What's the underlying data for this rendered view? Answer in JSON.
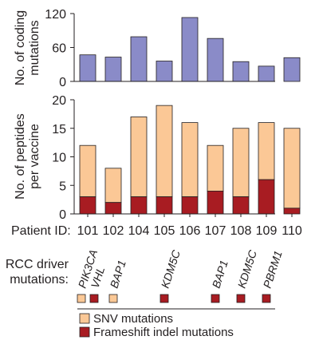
{
  "chart_data": [
    {
      "type": "bar",
      "ylabel": "No. of coding mutations",
      "ylabel_lines": [
        "No. of coding",
        "mutations"
      ],
      "ylim": [
        0,
        120
      ],
      "yticks": [
        0,
        60,
        120
      ],
      "categories": [
        "101",
        "102",
        "104",
        "105",
        "106",
        "107",
        "108",
        "109",
        "110"
      ],
      "series": [
        {
          "values": [
            47,
            43,
            79,
            36,
            113,
            76,
            35,
            27,
            42
          ]
        }
      ],
      "grid": false
    },
    {
      "type": "bar",
      "stacked": true,
      "ylabel": "No. of peptides per vaccine",
      "ylabel_lines": [
        "No. of peptides",
        "per vaccine"
      ],
      "ylim": [
        0,
        20
      ],
      "yticks": [
        0,
        5,
        10,
        15,
        20
      ],
      "categories": [
        "101",
        "102",
        "104",
        "105",
        "106",
        "107",
        "108",
        "109",
        "110"
      ],
      "series": [
        {
          "name": "Frameshift indel mutations",
          "values": [
            3,
            2,
            3,
            3,
            3,
            4,
            3,
            6,
            1
          ]
        },
        {
          "name": "SNV mutations",
          "values": [
            9,
            6,
            14,
            16,
            13,
            8,
            12,
            10,
            14
          ]
        }
      ],
      "grid": false
    }
  ],
  "patient_id_label": "Patient ID:",
  "driver_label_lines": [
    "RCC driver",
    "mutations:"
  ],
  "driver_mutations": [
    {
      "patient": "101",
      "genes": [
        "PIK3CA",
        "VHL"
      ],
      "types": [
        "SNV mutations",
        "Frameshift indel mutations"
      ]
    },
    {
      "patient": "102",
      "genes": [
        "BAP1"
      ],
      "types": [
        "SNV mutations"
      ]
    },
    {
      "patient": "105",
      "genes": [
        "KDM5C"
      ],
      "types": [
        "Frameshift indel mutations"
      ]
    },
    {
      "patient": "107",
      "genes": [
        "BAP1"
      ],
      "types": [
        "Frameshift indel mutations"
      ]
    },
    {
      "patient": "108",
      "genes": [
        "KDM5C"
      ],
      "types": [
        "Frameshift indel mutations"
      ]
    },
    {
      "patient": "109",
      "genes": [
        "PBRM1"
      ],
      "types": [
        "Frameshift indel mutations"
      ]
    }
  ],
  "colors": {
    "coding_bar": "#8a8bc8",
    "snv": "#fbc896",
    "indel": "#a81c22",
    "axis": "#231f20"
  },
  "legend": {
    "items": [
      {
        "label": "SNV mutations",
        "color_key": "snv"
      },
      {
        "label": "Frameshift indel mutations",
        "color_key": "indel"
      }
    ]
  }
}
